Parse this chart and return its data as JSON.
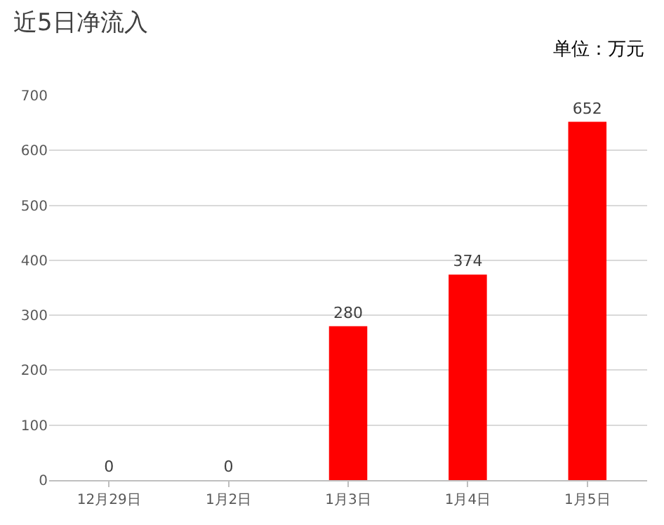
{
  "chart_data": {
    "type": "bar",
    "title": "近5日净流入",
    "annotations": [
      "单位：万元"
    ],
    "categories": [
      "12月29日",
      "1月2日",
      "1月3日",
      "1月4日",
      "1月5日"
    ],
    "values": [
      0,
      0,
      280,
      374,
      652
    ],
    "color": "#ff0000",
    "ylim": [
      0,
      700
    ],
    "yticks": [
      0,
      100,
      200,
      300,
      400,
      500,
      600,
      700
    ],
    "grid": "y",
    "data_labels": true,
    "legend": false
  }
}
